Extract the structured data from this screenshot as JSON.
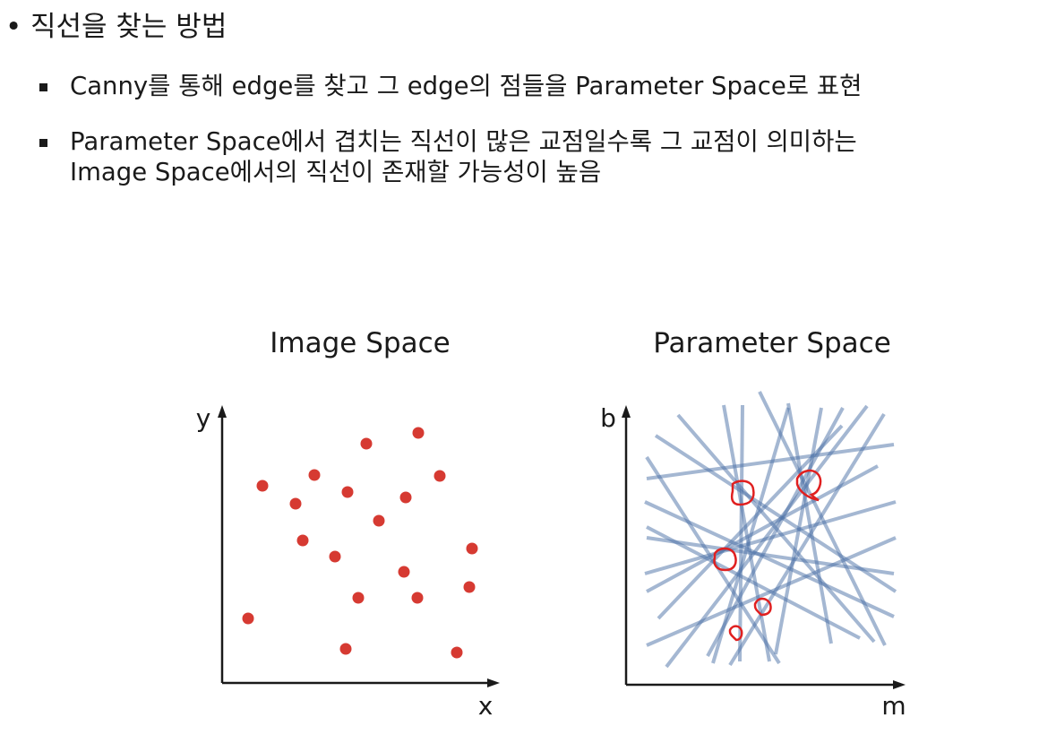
{
  "heading": {
    "bullet": "•",
    "text": "직선을 찾는 방법"
  },
  "bullets": [
    {
      "lines": [
        "Canny를 통해 edge를 찾고 그 edge의 점들을 Parameter Space로 표현"
      ]
    },
    {
      "lines": [
        "Parameter Space에서 겹치는 직선이 많은 교점일수록 그 교점이 의미하는",
        "Image Space에서의 직선이 존재할 가능성이 높음"
      ]
    }
  ],
  "image_space": {
    "title": "Image Space",
    "x_axis_label": "x",
    "y_axis_label": "y",
    "point_color": "#d63a32"
  },
  "parameter_space": {
    "title": "Parameter Space",
    "x_axis_label": "m",
    "y_axis_label": "b",
    "line_color": "#4a6fa5",
    "highlight_color": "#e02020"
  },
  "colors": {
    "text": "#1a1a1a",
    "axis": "#1a1a1a"
  }
}
